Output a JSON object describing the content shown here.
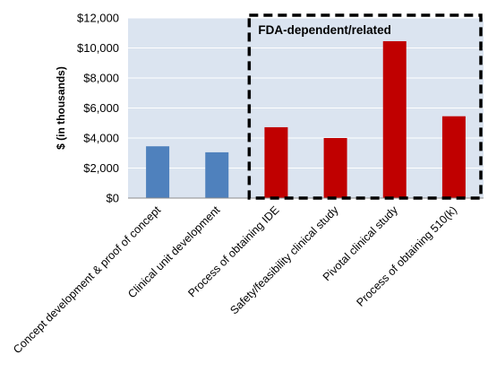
{
  "chart_data": {
    "type": "bar",
    "title": "",
    "xlabel": "",
    "ylabel": "$ (in thousands)",
    "ylim": [
      0,
      12000
    ],
    "ytick_values": [
      0,
      2000,
      4000,
      6000,
      8000,
      10000,
      12000
    ],
    "ytick_labels": [
      "$0",
      "$2,000",
      "$4,000",
      "$6,000",
      "$8,000",
      "$10,000",
      "$12,000"
    ],
    "grid": true,
    "categories": [
      "Concept development & proof of concept",
      "Clinical unit development",
      "Process of obtaining IDE",
      "Safety/feasibility clinical study",
      "Pivotal clinical study",
      "Process of obtaining 510(k)"
    ],
    "values": [
      3450,
      3050,
      4720,
      4000,
      10450,
      5450
    ],
    "bar_colors": [
      "#4f81bd",
      "#4f81bd",
      "#c00000",
      "#c00000",
      "#c00000",
      "#c00000"
    ],
    "annotation": {
      "label": "FDA-dependent/related",
      "first_category_index": 2,
      "last_category_index": 5,
      "style": "dashed-box"
    },
    "colors": {
      "plot_background": "#dbe4f0",
      "gridline": "#ffffff",
      "axis": "#8c8c8c"
    }
  }
}
